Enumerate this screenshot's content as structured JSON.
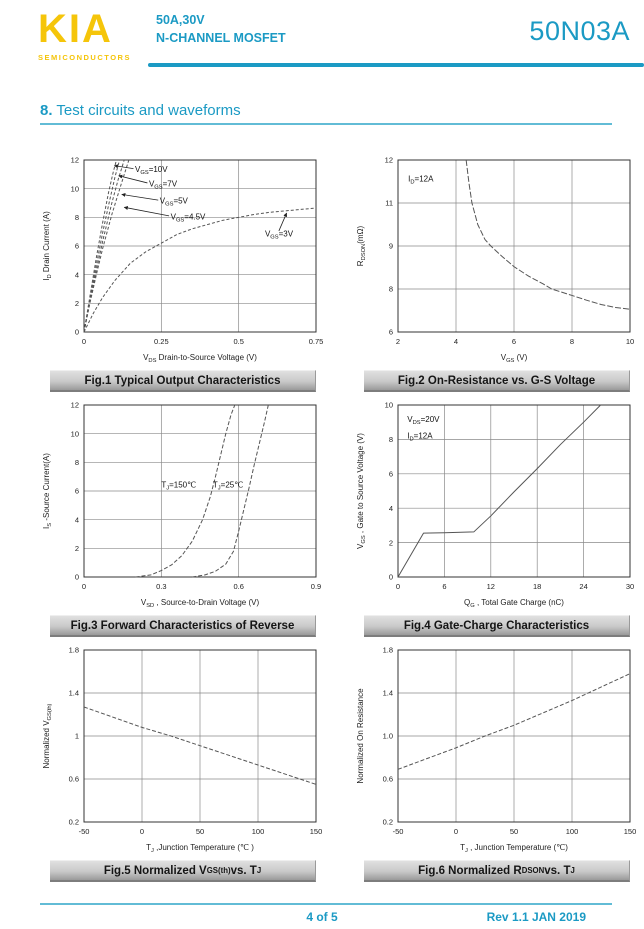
{
  "header": {
    "logo": "KIA",
    "logo_sub": "SEMICONDUCTORS",
    "rating": "50A,30V",
    "device_type": "N-CHANNEL MOSFET",
    "part_number": "50N03A"
  },
  "section": {
    "number": "8.",
    "title": " Test circuits and waveforms"
  },
  "footer": {
    "page": "4 of 5",
    "rev": "Rev 1.1 JAN 2019"
  },
  "colors": {
    "teal": "#1b9ac4",
    "yellow": "#f5c50a",
    "caption_bg": "#c9c9c9",
    "curve": "#555555"
  },
  "chart_data": [
    {
      "type": "line",
      "caption": "Fig.1 Typical Output Characteristics",
      "xlabel": "V_{DS}  Drain-to-Source Voltage (V)",
      "ylabel": "I_{D} Drain Current (A)",
      "xlim": [
        0,
        0.75
      ],
      "ylim": [
        0,
        12
      ],
      "grid": true,
      "xticks": [
        {
          "v": 0,
          "l": "0"
        },
        {
          "v": 0.25,
          "l": "0.25"
        },
        {
          "v": 0.5,
          "l": "0.5"
        },
        {
          "v": 0.75,
          "l": "0.75"
        }
      ],
      "yticks": [
        {
          "v": 0,
          "l": "0"
        },
        {
          "v": 2,
          "l": "2"
        },
        {
          "v": 4,
          "l": "4"
        },
        {
          "v": 6,
          "l": "6"
        },
        {
          "v": 8,
          "l": "8"
        },
        {
          "v": 10,
          "l": "10"
        },
        {
          "v": 12,
          "l": "12"
        }
      ],
      "series": [
        {
          "name": "VGS=10V",
          "dash": "3 2",
          "points": [
            [
              0,
              0
            ],
            [
              0.02,
              2.6
            ],
            [
              0.04,
              5.2
            ],
            [
              0.06,
              7.6
            ],
            [
              0.08,
              9.8
            ],
            [
              0.095,
              11.2
            ],
            [
              0.105,
              12
            ]
          ]
        },
        {
          "name": "VGS=7V",
          "dash": "3 2",
          "points": [
            [
              0,
              0
            ],
            [
              0.02,
              2.4
            ],
            [
              0.04,
              4.7
            ],
            [
              0.06,
              6.9
            ],
            [
              0.08,
              8.9
            ],
            [
              0.1,
              10.8
            ],
            [
              0.115,
              12
            ]
          ]
        },
        {
          "name": "VGS=5V",
          "dash": "3 2",
          "points": [
            [
              0,
              0
            ],
            [
              0.02,
              2.2
            ],
            [
              0.04,
              4.3
            ],
            [
              0.06,
              6.3
            ],
            [
              0.09,
              9.0
            ],
            [
              0.11,
              10.6
            ],
            [
              0.13,
              12
            ]
          ]
        },
        {
          "name": "VGS=4.5V",
          "dash": "3 2",
          "points": [
            [
              0,
              0
            ],
            [
              0.02,
              2.1
            ],
            [
              0.04,
              4.0
            ],
            [
              0.06,
              5.8
            ],
            [
              0.09,
              8.2
            ],
            [
              0.12,
              10.3
            ],
            [
              0.145,
              12
            ]
          ]
        },
        {
          "name": "VGS=3V",
          "dash": "3 2",
          "points": [
            [
              0,
              0
            ],
            [
              0.03,
              1.3
            ],
            [
              0.06,
              2.4
            ],
            [
              0.1,
              3.6
            ],
            [
              0.15,
              4.8
            ],
            [
              0.2,
              5.6
            ],
            [
              0.25,
              6.2
            ],
            [
              0.3,
              6.8
            ],
            [
              0.35,
              7.2
            ],
            [
              0.4,
              7.5
            ],
            [
              0.45,
              7.8
            ],
            [
              0.5,
              8.0
            ],
            [
              0.55,
              8.2
            ],
            [
              0.6,
              8.35
            ],
            [
              0.65,
              8.45
            ],
            [
              0.7,
              8.55
            ],
            [
              0.75,
              8.65
            ]
          ]
        }
      ],
      "annotations": [
        {
          "text": "V_{GS}=10V",
          "x": 0.165,
          "y": 11.15,
          "arrow": [
            0.16,
            11.4,
            0.098,
            11.6
          ]
        },
        {
          "text": "V_{GS}=7V",
          "x": 0.21,
          "y": 10.15,
          "arrow": [
            0.205,
            10.4,
            0.112,
            10.9
          ]
        },
        {
          "text": "V_{GS}=5V",
          "x": 0.245,
          "y": 8.95,
          "arrow": [
            0.24,
            9.2,
            0.122,
            9.6
          ]
        },
        {
          "text": "V_{GS}=4.5V",
          "x": 0.28,
          "y": 7.85,
          "arrow": [
            0.275,
            8.1,
            0.13,
            8.7
          ]
        },
        {
          "text": "V_{GS}=3V",
          "x": 0.585,
          "y": 6.65,
          "arrow": [
            0.63,
            7.05,
            0.655,
            8.3
          ]
        }
      ]
    },
    {
      "type": "line",
      "caption": "Fig.2 On-Resistance vs. G-S Voltage",
      "xlabel": "V_{GS} (V)",
      "ylabel": "R_{DSON}(mΩ)",
      "xlim": [
        2,
        10
      ],
      "ylim": [
        0,
        4
      ],
      "grid": true,
      "y_note": "y positions are even grid units; labels as printed (mΩ)",
      "xticks": [
        {
          "v": 2,
          "l": "2"
        },
        {
          "v": 4,
          "l": "4"
        },
        {
          "v": 6,
          "l": "6"
        },
        {
          "v": 8,
          "l": "8"
        },
        {
          "v": 10,
          "l": "10"
        }
      ],
      "yticks": [
        {
          "v": 0,
          "l": "6"
        },
        {
          "v": 1,
          "l": "8"
        },
        {
          "v": 2,
          "l": "9"
        },
        {
          "v": 3,
          "l": "11"
        },
        {
          "v": 4,
          "l": "12"
        }
      ],
      "series": [
        {
          "name": "RDSON",
          "dash": "6 2",
          "points": [
            [
              4.35,
              4
            ],
            [
              4.45,
              3.45
            ],
            [
              4.55,
              3.0
            ],
            [
              4.75,
              2.5
            ],
            [
              5.0,
              2.15
            ],
            [
              5.2,
              2.0
            ],
            [
              5.6,
              1.75
            ],
            [
              6.0,
              1.52
            ],
            [
              6.5,
              1.3
            ],
            [
              7.0,
              1.12
            ],
            [
              7.3,
              1.0
            ],
            [
              8.0,
              0.85
            ],
            [
              8.5,
              0.74
            ],
            [
              9.0,
              0.64
            ],
            [
              9.5,
              0.57
            ],
            [
              10,
              0.53
            ]
          ]
        }
      ],
      "annotations": [
        {
          "text": "I_{D}=12A",
          "x": 2.35,
          "y": 3.5
        }
      ]
    },
    {
      "type": "line",
      "caption": "Fig.3 Forward Characteristics of Reverse",
      "xlabel": "V_{SD} , Source-to-Drain Voltage (V)",
      "ylabel": "I_{S} -Source Current(A)",
      "xlim": [
        0,
        0.9
      ],
      "ylim": [
        0,
        12
      ],
      "grid": true,
      "xticks": [
        {
          "v": 0,
          "l": "0"
        },
        {
          "v": 0.3,
          "l": "0.3"
        },
        {
          "v": 0.6,
          "l": "0.6"
        },
        {
          "v": 0.9,
          "l": "0.9"
        }
      ],
      "yticks": [
        {
          "v": 0,
          "l": "0"
        },
        {
          "v": 2,
          "l": "2"
        },
        {
          "v": 4,
          "l": "4"
        },
        {
          "v": 6,
          "l": "6"
        },
        {
          "v": 8,
          "l": "8"
        },
        {
          "v": 10,
          "l": "10"
        },
        {
          "v": 12,
          "l": "12"
        }
      ],
      "series": [
        {
          "name": "TJ=150C",
          "dash": "4 2",
          "points": [
            [
              0.2,
              0
            ],
            [
              0.26,
              0.15
            ],
            [
              0.3,
              0.45
            ],
            [
              0.34,
              0.85
            ],
            [
              0.38,
              1.5
            ],
            [
              0.42,
              2.5
            ],
            [
              0.46,
              4.0
            ],
            [
              0.49,
              5.6
            ],
            [
              0.51,
              7.0
            ],
            [
              0.53,
              8.5
            ],
            [
              0.55,
              10.0
            ],
            [
              0.57,
              11.3
            ],
            [
              0.585,
              12
            ]
          ]
        },
        {
          "name": "TJ=25C",
          "dash": "4 2",
          "points": [
            [
              0.42,
              0
            ],
            [
              0.47,
              0.15
            ],
            [
              0.51,
              0.4
            ],
            [
              0.55,
              0.9
            ],
            [
              0.58,
              1.8
            ],
            [
              0.6,
              3.2
            ],
            [
              0.62,
              4.7
            ],
            [
              0.64,
              6.2
            ],
            [
              0.66,
              7.8
            ],
            [
              0.68,
              9.3
            ],
            [
              0.7,
              10.8
            ],
            [
              0.715,
              12
            ]
          ]
        }
      ],
      "annotations": [
        {
          "text": "T_{J}=150℃",
          "x": 0.3,
          "y": 6.25
        },
        {
          "text": "T_{J}=25℃",
          "x": 0.5,
          "y": 6.25
        }
      ]
    },
    {
      "type": "line",
      "caption": "Fig.4 Gate-Charge Characteristics",
      "xlabel": "Q_{G} , Total Gate Charge (nC)",
      "ylabel": "V_{GS} , Gate to Source Voltage (V)",
      "xlim": [
        0,
        30
      ],
      "ylim": [
        0,
        10
      ],
      "grid": true,
      "xticks": [
        {
          "v": 0,
          "l": "0"
        },
        {
          "v": 6,
          "l": "6"
        },
        {
          "v": 12,
          "l": "12"
        },
        {
          "v": 18,
          "l": "18"
        },
        {
          "v": 24,
          "l": "24"
        },
        {
          "v": 30,
          "l": "30"
        }
      ],
      "yticks": [
        {
          "v": 0,
          "l": "0"
        },
        {
          "v": 2,
          "l": "2"
        },
        {
          "v": 4,
          "l": "4"
        },
        {
          "v": 6,
          "l": "6"
        },
        {
          "v": 8,
          "l": "8"
        },
        {
          "v": 10,
          "l": "10"
        }
      ],
      "series": [
        {
          "name": "gate charge",
          "dash": "",
          "points": [
            [
              0,
              0
            ],
            [
              3.3,
              2.55
            ],
            [
              6,
              2.57
            ],
            [
              9.8,
              2.62
            ],
            [
              12,
              3.55
            ],
            [
              15,
              4.95
            ],
            [
              18,
              6.3
            ],
            [
              21,
              7.7
            ],
            [
              24,
              9.0
            ],
            [
              26.2,
              10
            ]
          ]
        }
      ],
      "annotations": [
        {
          "text": "V_{DS}=20V",
          "x": 1.2,
          "y": 9.0
        },
        {
          "text": "I_{D}=12A",
          "x": 1.2,
          "y": 8.05
        }
      ]
    },
    {
      "type": "line",
      "caption": "Fig.5 Normalized V_{GS(th)} vs. T_{J}",
      "xlabel": "T_{J} ,Junction Temperature (℃ )",
      "ylabel": "Normalized V_{GS(th)}",
      "xlim": [
        -50,
        150
      ],
      "ylim": [
        0.2,
        1.8
      ],
      "grid": true,
      "xticks": [
        {
          "v": -50,
          "l": "-50"
        },
        {
          "v": 0,
          "l": "0"
        },
        {
          "v": 50,
          "l": "50"
        },
        {
          "v": 100,
          "l": "100"
        },
        {
          "v": 150,
          "l": "150"
        }
      ],
      "yticks": [
        {
          "v": 0.2,
          "l": "0.2"
        },
        {
          "v": 0.6,
          "l": "0.6"
        },
        {
          "v": 1,
          "l": "1"
        },
        {
          "v": 1.4,
          "l": "1.4"
        },
        {
          "v": 1.8,
          "l": "1.8"
        }
      ],
      "series": [
        {
          "name": "normalized VGS(th)",
          "dash": "4 2",
          "points": [
            [
              -50,
              1.27
            ],
            [
              0,
              1.08
            ],
            [
              25,
              1.0
            ],
            [
              50,
              0.91
            ],
            [
              100,
              0.73
            ],
            [
              150,
              0.55
            ]
          ]
        }
      ],
      "annotations": []
    },
    {
      "type": "line",
      "caption": "Fig.6 Normalized R_{DSON} vs. T_{J}",
      "xlabel": "T_{J} , Junction Temperature (℃)",
      "ylabel": "Normalized On Resistance",
      "xlim": [
        -50,
        150
      ],
      "ylim": [
        0.2,
        1.8
      ],
      "grid": true,
      "xticks": [
        {
          "v": -50,
          "l": "-50"
        },
        {
          "v": 0,
          "l": "0"
        },
        {
          "v": 50,
          "l": "50"
        },
        {
          "v": 100,
          "l": "100"
        },
        {
          "v": 150,
          "l": "150"
        }
      ],
      "yticks": [
        {
          "v": 0.2,
          "l": "0.2"
        },
        {
          "v": 0.6,
          "l": "0.6"
        },
        {
          "v": 1,
          "l": "1.0"
        },
        {
          "v": 1.4,
          "l": "1.4"
        },
        {
          "v": 1.8,
          "l": "1.8"
        }
      ],
      "series": [
        {
          "name": "normalized RDSON",
          "dash": "4 2",
          "points": [
            [
              -50,
              0.69
            ],
            [
              0,
              0.89
            ],
            [
              25,
              1.0
            ],
            [
              50,
              1.1
            ],
            [
              100,
              1.33
            ],
            [
              150,
              1.58
            ]
          ]
        }
      ],
      "annotations": []
    }
  ]
}
